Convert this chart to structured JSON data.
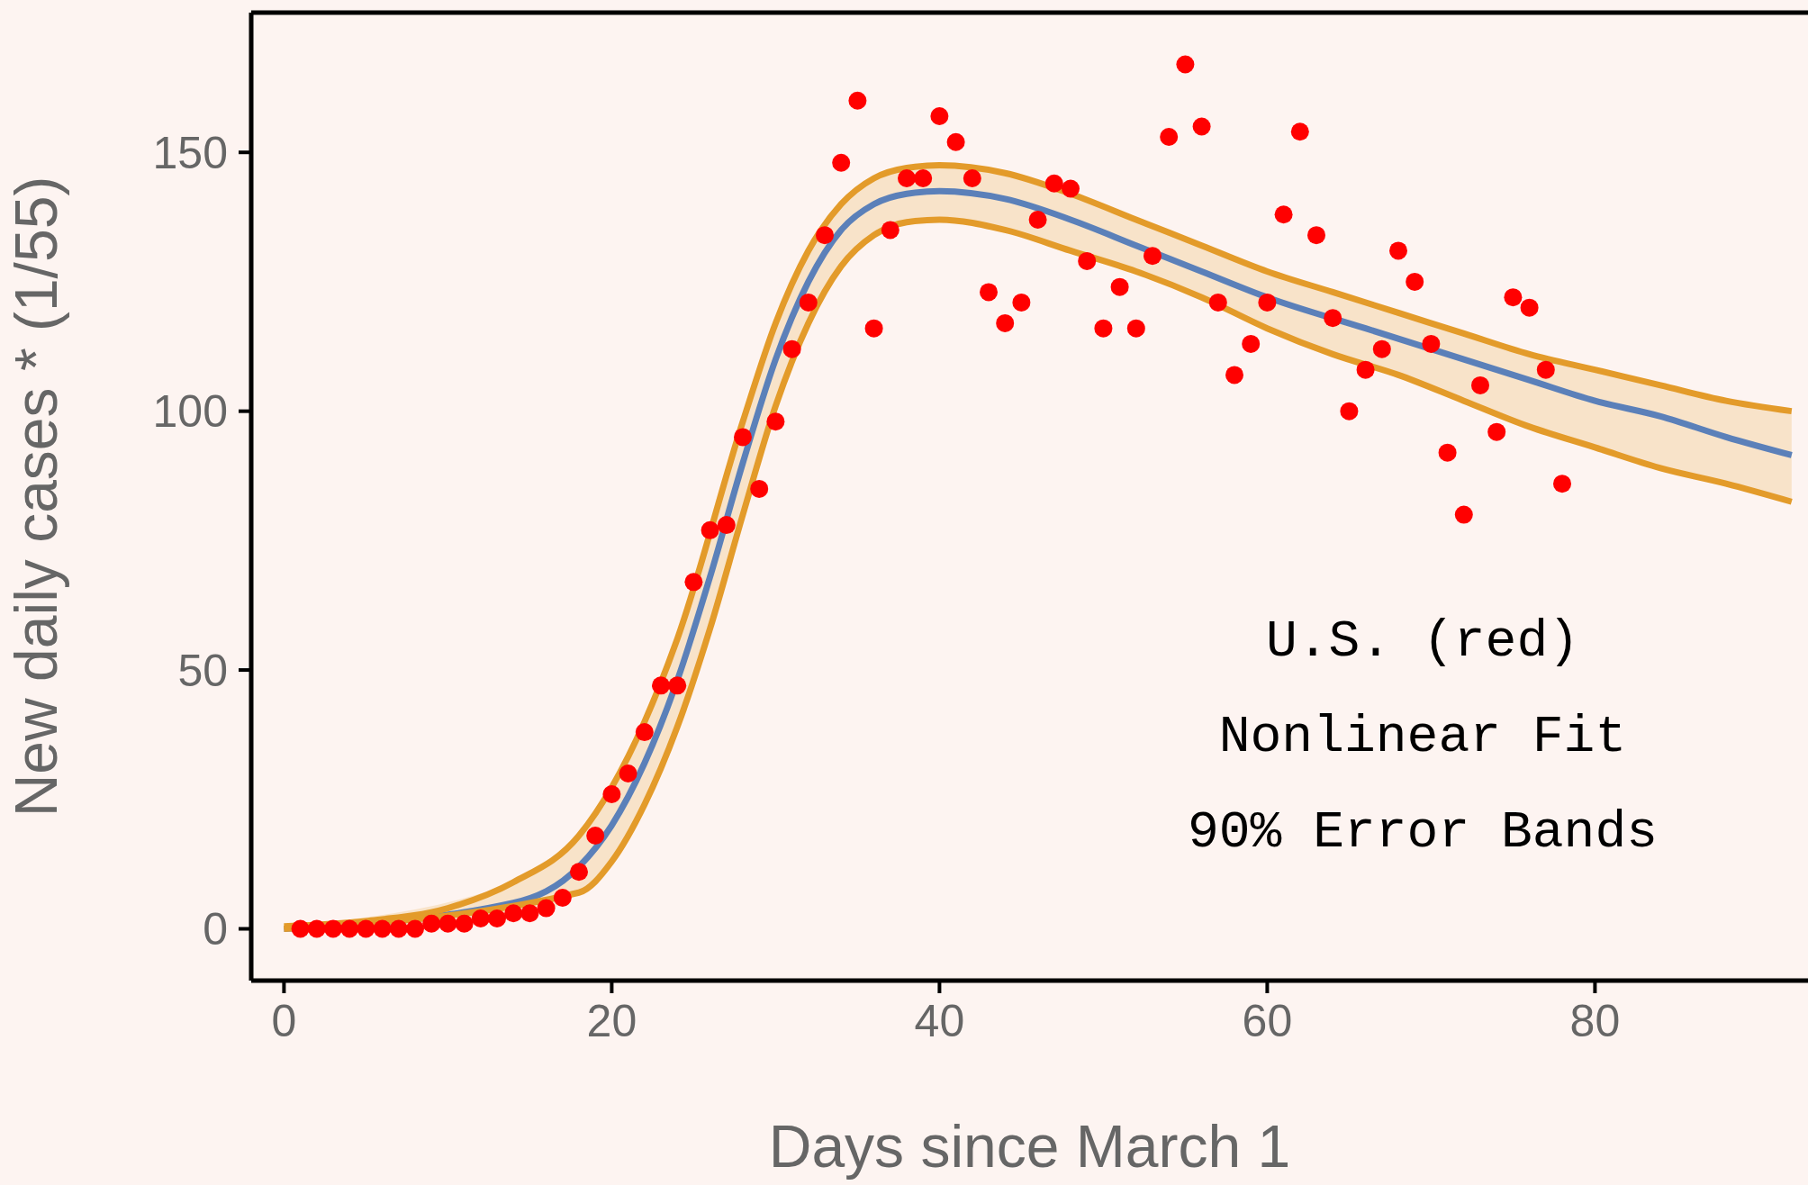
{
  "chart_data": {
    "type": "scatter",
    "xlabel": "Days since March 1",
    "ylabel": "New daily cases * (1/55)",
    "xlim": [
      -2,
      93
    ],
    "xticks": [
      0,
      20,
      40,
      60,
      80
    ],
    "ylim": [
      -10,
      177
    ],
    "yticks": [
      0,
      50,
      100,
      150
    ],
    "grid": false,
    "legend": false,
    "annotations": [
      "U.S. (red)",
      "Nonlinear Fit",
      "90% Error Bands"
    ],
    "series": [
      {
        "color": "#ff0000",
        "marker": "circle",
        "x": [
          1,
          2,
          3,
          4,
          5,
          6,
          7,
          8,
          9,
          10,
          11,
          12,
          13,
          14,
          15,
          16,
          17,
          18,
          19,
          20,
          21,
          22,
          23,
          24,
          25,
          26,
          27,
          28,
          29,
          30,
          31,
          32,
          33,
          34,
          35,
          36,
          37,
          38,
          39,
          40,
          41,
          42,
          43,
          44,
          45,
          46,
          47,
          48,
          49,
          50,
          51,
          52,
          53,
          54,
          55,
          56,
          57,
          58,
          59,
          60,
          61,
          62,
          63,
          64,
          65,
          66,
          67,
          68,
          69,
          70,
          71,
          72,
          73,
          74,
          75,
          76,
          77,
          78
        ],
        "values": [
          0,
          0,
          0,
          0,
          0,
          0,
          0,
          0,
          1,
          1,
          1,
          2,
          2,
          3,
          3,
          4,
          6,
          11,
          18,
          26,
          30,
          38,
          47,
          47,
          67,
          77,
          78,
          95,
          85,
          98,
          112,
          121,
          134,
          148,
          160,
          116,
          135,
          145,
          145,
          157,
          152,
          145,
          123,
          117,
          121,
          137,
          144,
          143,
          129,
          116,
          124,
          116,
          130,
          153,
          167,
          155,
          121,
          107,
          113,
          121,
          138,
          154,
          134,
          118,
          100,
          108,
          112,
          131,
          125,
          113,
          92,
          80,
          105,
          96,
          122,
          120,
          108,
          86
        ]
      },
      {
        "type": "line",
        "color": "#5b80b9",
        "x": [
          0,
          14,
          18,
          20,
          22,
          24,
          26,
          28,
          30,
          32,
          34,
          36,
          38,
          40,
          44,
          48,
          52,
          56,
          60,
          66,
          72,
          76,
          80,
          84,
          88,
          92
        ],
        "values": [
          0,
          5,
          12,
          20,
          32,
          48,
          68,
          90,
          110,
          125,
          135,
          140,
          142,
          142.5,
          141,
          137,
          132,
          127,
          122,
          116,
          110,
          106,
          102,
          99,
          95,
          91.5
        ],
        "upper": [
          0.5,
          9,
          18,
          26,
          40,
          56,
          77,
          98,
          117,
          131,
          140,
          145,
          147,
          147.5,
          146,
          142,
          137,
          132,
          127,
          121,
          115,
          111,
          108,
          105,
          102,
          100
        ],
        "lower": [
          0,
          2,
          7,
          13,
          24,
          39,
          58,
          80,
          101,
          117,
          128,
          134,
          136.5,
          137,
          135,
          131,
          127,
          122,
          116,
          109,
          102,
          97,
          93,
          89,
          86,
          82.5
        ]
      },
      {
        "type": "line",
        "color": "#e39b2a",
        "x": [
          0,
          5,
          10,
          14,
          18,
          22,
          24,
          28,
          30,
          32,
          34,
          36,
          38,
          40,
          44,
          48,
          52,
          56,
          60,
          64,
          68,
          72,
          76,
          80,
          84,
          88,
          92
        ],
        "values": [
          0.5,
          1.5,
          4,
          9,
          18,
          40,
          56,
          98,
          117,
          131,
          140,
          145,
          147,
          147.5,
          146,
          142,
          137,
          132,
          127,
          123,
          119,
          115,
          111,
          108,
          105,
          102,
          100
        ]
      },
      {
        "type": "line",
        "color": "#e39b2a",
        "x": [
          0,
          18,
          20,
          22,
          24,
          26,
          28,
          30,
          32,
          34,
          36,
          38,
          40,
          44,
          48,
          52,
          56,
          60,
          64,
          68,
          72,
          76,
          80,
          84,
          88,
          92
        ],
        "values": [
          0,
          7,
          13,
          24,
          39,
          58,
          80,
          101,
          117,
          128,
          134,
          136.5,
          137,
          135,
          131,
          127,
          122,
          116,
          111,
          107,
          102,
          97,
          93,
          89,
          86,
          82.5
        ]
      }
    ]
  }
}
